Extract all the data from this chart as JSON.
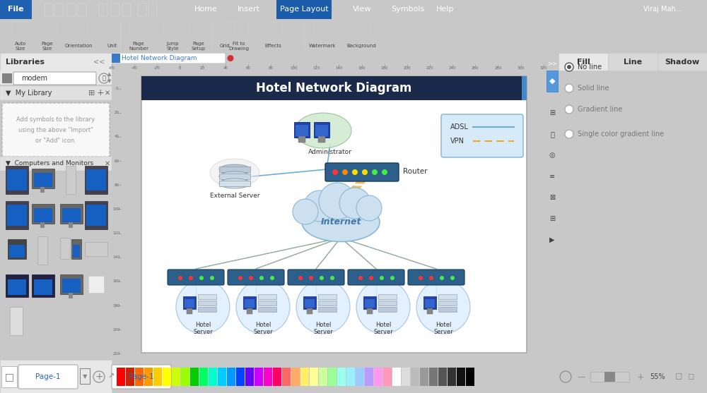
{
  "title": "Hotel Network Diagram",
  "title_bg": "#1b2a4a",
  "title_color": "#ffffff",
  "bg_color": "#c8c8c8",
  "canvas_bg": "#ffffff",
  "toolbar_top_bg": "#3a7bc8",
  "toolbar_icon_bg": "#f4f4f4",
  "left_panel_bg": "#f0f0f0",
  "right_panel_bg": "#f0f0f0",
  "right_icon_bar_bg": "#3a7bc8",
  "ruler_bg": "#e4e4e4",
  "statusbar_bg": "#e0e0e0",
  "legend_bg": "#d6eaf8",
  "legend_border": "#7fb3d3",
  "adsl_color": "#6baed6",
  "vpn_color": "#f5a623",
  "internet_fill": "#cce0f0",
  "internet_stroke": "#88b8d8",
  "switch_fill": "#2c5f8a",
  "hotel_circle_fill": "#ddeeff",
  "hotel_circle_stroke": "#99bbdd",
  "adsl_label": "ADSL",
  "vpn_label": "VPN",
  "router_label": "Router",
  "external_server_label": "External Server",
  "administrator_label": "Administrator",
  "internet_label": "Internet",
  "hotel_labels": [
    "Hotel\nServer",
    "Hotel\nServer",
    "Hotel\nServer",
    "Hotel\nServer",
    "Hotel\nServer"
  ],
  "tab_text": "Hotel Network Diagram",
  "tab_bg": "#ffffff",
  "tab_dot": "#cc3333",
  "page1_label": "Page-1",
  "zoom_pct": "55%",
  "palette_colors": [
    "#ff0000",
    "#cc2200",
    "#ff6600",
    "#ff9900",
    "#ffcc00",
    "#ffff00",
    "#ccff00",
    "#99ff00",
    "#00cc00",
    "#00ff66",
    "#00ffcc",
    "#00ccff",
    "#0099ff",
    "#0044ff",
    "#6600ff",
    "#cc00ff",
    "#ff00cc",
    "#ff0066",
    "#ff6666",
    "#ffaa66",
    "#ffee66",
    "#ffff99",
    "#ccff99",
    "#99ff99",
    "#99ffee",
    "#99eeff",
    "#99ccff",
    "#bb99ff",
    "#ff99ee",
    "#ff99bb",
    "#ffffff",
    "#dddddd",
    "#bbbbbb",
    "#999999",
    "#777777",
    "#555555",
    "#333333",
    "#111111",
    "#000000"
  ]
}
